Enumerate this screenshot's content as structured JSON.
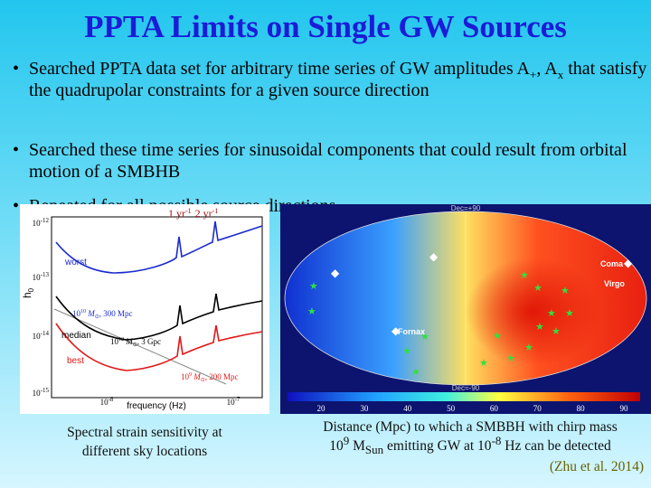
{
  "title": "PPTA Limits on Single GW Sources",
  "bullets": [
    [
      "Searched PPTA data set for arbitrary time series of GW amplitudes A",
      "+",
      ", A",
      "x",
      " that satisfy the quadrupolar constraints for a given source direction"
    ],
    [
      "Searched these time series for sinusoidal components that could result from orbital motion of a SMBHB"
    ],
    [
      "Repeated for all possible source directions"
    ]
  ],
  "left_plot": {
    "top_labels": [
      "1 yr",
      "-1",
      "2 yr",
      "-1"
    ],
    "y_label": [
      "h",
      "0"
    ],
    "yticks": [
      [
        "10",
        "-12"
      ],
      [
        "10",
        "-13"
      ],
      [
        "10",
        "-14"
      ],
      [
        "10",
        "-15"
      ]
    ],
    "xticks": [
      [
        "10",
        "-8"
      ],
      [
        "10",
        "-7"
      ]
    ],
    "x_label": "frequency (Hz)",
    "curve_labels": [
      "worst",
      "median",
      "best"
    ],
    "annotations": [
      [
        "10",
        "10",
        " M",
        "⊙",
        ", 300 Mpc"
      ],
      [
        "10",
        "12",
        " M",
        "⊙",
        ", 3 Gpc"
      ],
      [
        "10",
        "9",
        " M",
        "⊙",
        ", 200 Mpc"
      ]
    ],
    "caption": [
      "Spectral strain sensitivity at",
      "different sky locations"
    ]
  },
  "right_plot": {
    "labels": [
      "Dec=+90",
      "Dec=-90",
      "Coma",
      "Virgo",
      "Fornax"
    ],
    "colorbar_ticks": [
      "20",
      "30",
      "40",
      "50",
      "60",
      "70",
      "80",
      "90"
    ],
    "caption": [
      "Distance (Mpc) to which a SMBBH with chirp mass",
      "10",
      "9",
      " M",
      "Sun",
      " emitting GW at 10",
      "-8",
      " Hz can be detected"
    ],
    "citation": "(Zhu et al. 2014)"
  }
}
